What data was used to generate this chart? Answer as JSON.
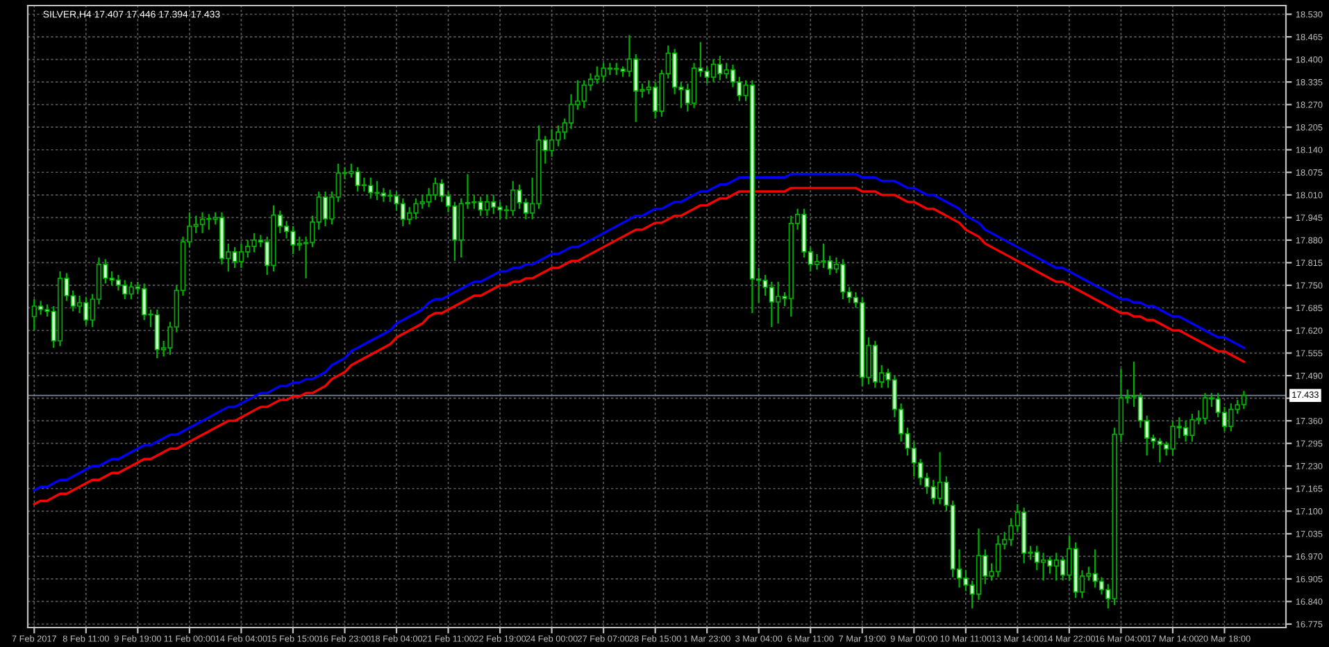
{
  "chart_data": {
    "type": "candlestick",
    "title": "SILVER,H4 17.407 17.446 17.394 17.433",
    "categories": [
      "7 Feb 2017",
      null,
      null,
      null,
      null,
      null,
      null,
      null,
      "8 Feb 11:00",
      null,
      null,
      null,
      null,
      null,
      null,
      null,
      "9 Feb 19:00",
      null,
      null,
      null,
      null,
      null,
      null,
      null,
      "11 Feb 00:00",
      null,
      null,
      null,
      null,
      null,
      null,
      null,
      "14 Feb 04:00",
      null,
      null,
      null,
      null,
      null,
      null,
      null,
      "15 Feb 15:00",
      null,
      null,
      null,
      null,
      null,
      null,
      null,
      "16 Feb 23:00",
      null,
      null,
      null,
      null,
      null,
      null,
      null,
      "18 Feb 04:00",
      null,
      null,
      null,
      null,
      null,
      null,
      null,
      "21 Feb 11:00",
      null,
      null,
      null,
      null,
      null,
      null,
      null,
      "22 Feb 19:00",
      null,
      null,
      null,
      null,
      null,
      null,
      null,
      "24 Feb 00:00",
      null,
      null,
      null,
      null,
      null,
      null,
      null,
      "27 Feb 07:00",
      null,
      null,
      null,
      null,
      null,
      null,
      null,
      "28 Feb 15:00",
      null,
      null,
      null,
      null,
      null,
      null,
      null,
      "1 Mar 23:00",
      null,
      null,
      null,
      null,
      null,
      null,
      null,
      "3 Mar 04:00",
      null,
      null,
      null,
      null,
      null,
      null,
      null,
      "6 Mar 11:00",
      null,
      null,
      null,
      null,
      null,
      null,
      null,
      "7 Mar 19:00",
      null,
      null,
      null,
      null,
      null,
      null,
      null,
      "9 Mar 00:00",
      null,
      null,
      null,
      null,
      null,
      null,
      null,
      "10 Mar 11:00",
      null,
      null,
      null,
      null,
      null,
      null,
      null,
      "13 Mar 14:00",
      null,
      null,
      null,
      null,
      null,
      null,
      null,
      "14 Mar 22:00",
      null,
      null,
      null,
      null,
      null,
      null,
      null,
      "16 Mar 04:00",
      null,
      null,
      null,
      null,
      null,
      null,
      null,
      "17 Mar 14:00",
      null,
      null,
      null,
      null,
      null,
      null,
      null,
      "20 Mar 18:00",
      null,
      null,
      null
    ],
    "ohlc": [
      [
        17.66,
        17.71,
        17.62,
        17.69
      ],
      [
        17.69,
        17.705,
        17.665,
        17.68
      ],
      [
        17.68,
        17.695,
        17.66,
        17.675
      ],
      [
        17.675,
        17.69,
        17.57,
        17.59
      ],
      [
        17.59,
        17.79,
        17.575,
        17.77
      ],
      [
        17.77,
        17.785,
        17.705,
        17.72
      ],
      [
        17.72,
        17.735,
        17.675,
        17.69
      ],
      [
        17.69,
        17.72,
        17.67,
        17.7
      ],
      [
        17.7,
        17.715,
        17.635,
        17.65
      ],
      [
        17.65,
        17.725,
        17.63,
        17.71
      ],
      [
        17.71,
        17.83,
        17.695,
        17.81
      ],
      [
        17.81,
        17.825,
        17.755,
        17.77
      ],
      [
        17.77,
        17.79,
        17.75,
        17.765
      ],
      [
        17.765,
        17.78,
        17.735,
        17.75
      ],
      [
        17.75,
        17.765,
        17.71,
        17.725
      ],
      [
        17.725,
        17.76,
        17.71,
        17.745
      ],
      [
        17.745,
        17.76,
        17.725,
        17.74
      ],
      [
        17.74,
        17.755,
        17.65,
        17.665
      ],
      [
        17.665,
        17.68,
        17.63,
        17.665
      ],
      [
        17.665,
        17.68,
        17.54,
        17.565
      ],
      [
        17.565,
        17.59,
        17.545,
        17.57
      ],
      [
        17.57,
        17.645,
        17.55,
        17.63
      ],
      [
        17.63,
        17.75,
        17.615,
        17.735
      ],
      [
        17.735,
        17.89,
        17.72,
        17.875
      ],
      [
        17.875,
        17.96,
        17.86,
        17.92
      ],
      [
        17.92,
        17.95,
        17.9,
        17.925
      ],
      [
        17.925,
        17.96,
        17.9,
        17.94
      ],
      [
        17.94,
        17.955,
        17.91,
        17.94
      ],
      [
        17.94,
        17.96,
        17.925,
        17.945
      ],
      [
        17.945,
        17.96,
        17.81,
        17.827
      ],
      [
        17.827,
        17.87,
        17.79,
        17.846
      ],
      [
        17.846,
        17.86,
        17.8,
        17.818
      ],
      [
        17.818,
        17.87,
        17.8,
        17.846
      ],
      [
        17.846,
        17.88,
        17.83,
        17.862
      ],
      [
        17.862,
        17.9,
        17.845,
        17.88
      ],
      [
        17.88,
        17.895,
        17.86,
        17.875
      ],
      [
        17.875,
        17.89,
        17.78,
        17.807
      ],
      [
        17.807,
        17.98,
        17.79,
        17.952
      ],
      [
        17.952,
        17.965,
        17.9,
        17.92
      ],
      [
        17.92,
        17.935,
        17.885,
        17.905
      ],
      [
        17.905,
        17.92,
        17.84,
        17.866
      ],
      [
        17.866,
        17.89,
        17.85,
        17.87
      ],
      [
        17.87,
        17.89,
        17.77,
        17.873
      ],
      [
        17.873,
        17.95,
        17.86,
        17.932
      ],
      [
        17.932,
        18.02,
        17.91,
        18.004
      ],
      [
        18.004,
        18.02,
        17.92,
        17.941
      ],
      [
        17.941,
        18.02,
        17.925,
        18.004
      ],
      [
        18.004,
        18.1,
        17.99,
        18.073
      ],
      [
        18.073,
        18.09,
        18.055,
        18.072
      ],
      [
        18.072,
        18.1,
        18.06,
        18.077
      ],
      [
        18.077,
        18.09,
        18.02,
        18.037
      ],
      [
        18.037,
        18.06,
        18.02,
        18.037
      ],
      [
        18.037,
        18.06,
        18.0,
        18.017
      ],
      [
        18.017,
        18.05,
        17.995,
        18.015
      ],
      [
        18.015,
        18.03,
        17.99,
        18.007
      ],
      [
        18.007,
        18.025,
        17.99,
        18.007
      ],
      [
        18.007,
        18.02,
        17.965,
        17.985
      ],
      [
        17.985,
        18.0,
        17.92,
        17.94
      ],
      [
        17.94,
        17.975,
        17.925,
        17.958
      ],
      [
        17.958,
        18.0,
        17.94,
        17.985
      ],
      [
        17.985,
        18.01,
        17.97,
        17.99
      ],
      [
        17.99,
        18.03,
        17.975,
        18.01
      ],
      [
        18.01,
        18.06,
        17.995,
        18.043
      ],
      [
        18.043,
        18.055,
        17.99,
        18.007
      ],
      [
        18.007,
        18.02,
        17.96,
        17.978
      ],
      [
        17.978,
        17.99,
        17.82,
        17.88
      ],
      [
        17.88,
        18.0,
        17.83,
        17.985
      ],
      [
        17.985,
        18.07,
        17.97,
        17.988
      ],
      [
        17.988,
        18.01,
        17.97,
        17.99
      ],
      [
        17.99,
        18.005,
        17.95,
        17.967
      ],
      [
        17.967,
        18.01,
        17.95,
        17.99
      ],
      [
        17.99,
        18.01,
        17.955,
        17.975
      ],
      [
        17.975,
        17.99,
        17.94,
        17.967
      ],
      [
        17.967,
        17.98,
        17.94,
        17.965
      ],
      [
        17.965,
        18.05,
        17.95,
        18.024
      ],
      [
        18.024,
        18.04,
        17.97,
        17.988
      ],
      [
        17.988,
        18.0,
        17.94,
        17.958
      ],
      [
        17.958,
        18.06,
        17.94,
        17.985
      ],
      [
        17.985,
        18.21,
        17.97,
        18.168
      ],
      [
        18.168,
        18.18,
        18.1,
        18.138
      ],
      [
        18.138,
        18.2,
        18.12,
        18.168
      ],
      [
        18.168,
        18.21,
        18.15,
        18.191
      ],
      [
        18.191,
        18.23,
        18.17,
        18.217
      ],
      [
        18.217,
        18.3,
        18.2,
        18.27
      ],
      [
        18.27,
        18.34,
        18.255,
        18.28
      ],
      [
        18.28,
        18.34,
        18.26,
        18.326
      ],
      [
        18.326,
        18.36,
        18.31,
        18.343
      ],
      [
        18.343,
        18.38,
        18.33,
        18.352
      ],
      [
        18.352,
        18.39,
        18.335,
        18.375
      ],
      [
        18.375,
        18.39,
        18.355,
        18.372
      ],
      [
        18.372,
        18.39,
        18.355,
        18.372
      ],
      [
        18.372,
        18.38,
        18.35,
        18.366
      ],
      [
        18.366,
        18.47,
        18.35,
        18.401
      ],
      [
        18.401,
        18.415,
        18.22,
        18.309
      ],
      [
        18.309,
        18.33,
        18.29,
        18.313
      ],
      [
        18.313,
        18.34,
        18.3,
        18.32
      ],
      [
        18.32,
        18.335,
        18.23,
        18.251
      ],
      [
        18.251,
        18.37,
        18.235,
        18.359
      ],
      [
        18.359,
        18.44,
        18.345,
        18.418
      ],
      [
        18.418,
        18.43,
        18.3,
        18.32
      ],
      [
        18.32,
        18.335,
        18.26,
        18.313
      ],
      [
        18.313,
        18.33,
        18.25,
        18.274
      ],
      [
        18.274,
        18.39,
        18.26,
        18.375
      ],
      [
        18.375,
        18.45,
        18.35,
        18.366
      ],
      [
        18.366,
        18.38,
        18.33,
        18.349
      ],
      [
        18.349,
        18.4,
        18.335,
        18.386
      ],
      [
        18.386,
        18.41,
        18.34,
        18.359
      ],
      [
        18.359,
        18.39,
        18.345,
        18.37
      ],
      [
        18.37,
        18.385,
        18.32,
        18.335
      ],
      [
        18.335,
        18.35,
        18.28,
        18.296
      ],
      [
        18.296,
        18.34,
        18.28,
        18.326
      ],
      [
        18.326,
        18.34,
        17.67,
        17.768
      ],
      [
        17.768,
        17.8,
        17.7,
        17.764
      ],
      [
        17.764,
        17.78,
        17.72,
        17.744
      ],
      [
        17.744,
        17.76,
        17.63,
        17.702
      ],
      [
        17.702,
        17.76,
        17.64,
        17.718
      ],
      [
        17.718,
        17.73,
        17.69,
        17.712
      ],
      [
        17.712,
        17.95,
        17.66,
        17.928
      ],
      [
        17.928,
        17.97,
        17.91,
        17.954
      ],
      [
        17.954,
        17.97,
        17.83,
        17.846
      ],
      [
        17.846,
        17.86,
        17.79,
        17.81
      ],
      [
        17.81,
        17.84,
        17.795,
        17.818
      ],
      [
        17.818,
        17.87,
        17.8,
        17.82
      ],
      [
        17.82,
        17.835,
        17.78,
        17.797
      ],
      [
        17.797,
        17.83,
        17.785,
        17.81
      ],
      [
        17.81,
        17.825,
        17.71,
        17.731
      ],
      [
        17.731,
        17.745,
        17.7,
        17.715
      ],
      [
        17.715,
        17.73,
        17.685,
        17.7
      ],
      [
        17.7,
        17.715,
        17.46,
        17.485
      ],
      [
        17.485,
        17.6,
        17.465,
        17.577
      ],
      [
        17.577,
        17.59,
        17.455,
        17.472
      ],
      [
        17.472,
        17.52,
        17.455,
        17.498
      ],
      [
        17.498,
        17.51,
        17.455,
        17.478
      ],
      [
        17.478,
        17.49,
        17.37,
        17.393
      ],
      [
        17.393,
        17.41,
        17.3,
        17.323
      ],
      [
        17.323,
        17.34,
        17.26,
        17.281
      ],
      [
        17.281,
        17.3,
        17.2,
        17.239
      ],
      [
        17.239,
        17.25,
        17.175,
        17.196
      ],
      [
        17.196,
        17.21,
        17.15,
        17.17
      ],
      [
        17.17,
        17.19,
        17.12,
        17.137
      ],
      [
        17.137,
        17.27,
        17.12,
        17.183
      ],
      [
        17.183,
        17.2,
        17.1,
        17.117
      ],
      [
        17.117,
        17.13,
        16.91,
        16.933
      ],
      [
        16.933,
        16.99,
        16.88,
        16.907
      ],
      [
        16.907,
        16.93,
        16.87,
        16.887
      ],
      [
        16.887,
        16.9,
        16.82,
        16.861
      ],
      [
        16.861,
        17.05,
        16.845,
        16.972
      ],
      [
        16.972,
        16.99,
        16.89,
        16.913
      ],
      [
        16.913,
        16.95,
        16.9,
        16.926
      ],
      [
        16.926,
        17.03,
        16.91,
        17.005
      ],
      [
        17.005,
        17.04,
        16.99,
        17.018
      ],
      [
        17.018,
        17.08,
        17.0,
        17.058
      ],
      [
        17.058,
        17.12,
        17.04,
        17.097
      ],
      [
        17.097,
        17.11,
        16.95,
        16.979
      ],
      [
        16.979,
        17.0,
        16.96,
        16.982
      ],
      [
        16.982,
        17.0,
        16.93,
        16.953
      ],
      [
        16.953,
        16.98,
        16.9,
        16.959
      ],
      [
        16.959,
        16.97,
        16.92,
        16.942
      ],
      [
        16.942,
        16.98,
        16.9,
        16.959
      ],
      [
        16.959,
        16.97,
        16.9,
        16.916
      ],
      [
        16.916,
        17.03,
        16.9,
        16.992
      ],
      [
        16.992,
        17.01,
        16.85,
        16.867
      ],
      [
        16.867,
        16.93,
        16.85,
        16.913
      ],
      [
        16.913,
        16.94,
        16.9,
        16.92
      ],
      [
        16.92,
        16.99,
        16.88,
        16.898
      ],
      [
        16.898,
        16.91,
        16.86,
        16.874
      ],
      [
        16.874,
        16.89,
        16.82,
        16.848
      ],
      [
        16.848,
        17.34,
        16.83,
        17.321
      ],
      [
        17.321,
        17.51,
        17.3,
        17.426
      ],
      [
        17.426,
        17.45,
        17.41,
        17.429
      ],
      [
        17.429,
        17.53,
        17.4,
        17.429
      ],
      [
        17.429,
        17.44,
        17.34,
        17.36
      ],
      [
        17.36,
        17.375,
        17.26,
        17.31
      ],
      [
        17.31,
        17.32,
        17.28,
        17.301
      ],
      [
        17.301,
        17.31,
        17.24,
        17.292
      ],
      [
        17.292,
        17.3,
        17.26,
        17.279
      ],
      [
        17.279,
        17.36,
        17.26,
        17.344
      ],
      [
        17.344,
        17.37,
        17.31,
        17.34
      ],
      [
        17.34,
        17.36,
        17.3,
        17.318
      ],
      [
        17.318,
        17.38,
        17.3,
        17.363
      ],
      [
        17.363,
        17.39,
        17.35,
        17.367
      ],
      [
        17.367,
        17.44,
        17.35,
        17.426
      ],
      [
        17.426,
        17.44,
        17.4,
        17.423
      ],
      [
        17.423,
        17.44,
        17.37,
        17.384
      ],
      [
        17.384,
        17.4,
        17.33,
        17.344
      ],
      [
        17.344,
        17.41,
        17.33,
        17.393
      ],
      [
        17.393,
        17.42,
        17.38,
        17.406
      ],
      [
        17.407,
        17.446,
        17.394,
        17.433
      ]
    ],
    "series": [
      {
        "type": "line",
        "color": "#0000ff",
        "values": [
          17.16,
          17.17,
          17.17,
          17.18,
          17.19,
          17.19,
          17.2,
          17.21,
          17.22,
          17.23,
          17.23,
          17.24,
          17.25,
          17.25,
          17.26,
          17.27,
          17.28,
          17.29,
          17.29,
          17.3,
          17.31,
          17.32,
          17.32,
          17.33,
          17.34,
          17.35,
          17.36,
          17.37,
          17.38,
          17.39,
          17.4,
          17.4,
          17.41,
          17.42,
          17.43,
          17.44,
          17.44,
          17.45,
          17.46,
          17.46,
          17.47,
          17.47,
          17.48,
          17.48,
          17.49,
          17.5,
          17.52,
          17.53,
          17.54,
          17.56,
          17.57,
          17.58,
          17.59,
          17.6,
          17.61,
          17.62,
          17.64,
          17.65,
          17.66,
          17.67,
          17.68,
          17.7,
          17.71,
          17.71,
          17.72,
          17.73,
          17.74,
          17.75,
          17.76,
          17.76,
          17.77,
          17.78,
          17.79,
          17.79,
          17.8,
          17.8,
          17.81,
          17.81,
          17.82,
          17.83,
          17.84,
          17.84,
          17.85,
          17.86,
          17.86,
          17.87,
          17.88,
          17.89,
          17.9,
          17.91,
          17.92,
          17.93,
          17.94,
          17.95,
          17.95,
          17.96,
          17.97,
          17.97,
          17.98,
          17.99,
          17.99,
          18.0,
          18.01,
          18.02,
          18.02,
          18.03,
          18.04,
          18.04,
          18.05,
          18.06,
          18.06,
          18.06,
          18.06,
          18.06,
          18.06,
          18.06,
          18.06,
          18.07,
          18.07,
          18.07,
          18.07,
          18.07,
          18.07,
          18.07,
          18.07,
          18.07,
          18.07,
          18.07,
          18.06,
          18.06,
          18.06,
          18.05,
          18.05,
          18.05,
          18.04,
          18.03,
          18.03,
          18.02,
          18.01,
          18.01,
          18.0,
          17.99,
          17.98,
          17.97,
          17.95,
          17.94,
          17.93,
          17.91,
          17.9,
          17.89,
          17.88,
          17.87,
          17.86,
          17.85,
          17.84,
          17.83,
          17.82,
          17.81,
          17.8,
          17.8,
          17.79,
          17.78,
          17.77,
          17.76,
          17.75,
          17.74,
          17.73,
          17.72,
          17.71,
          17.71,
          17.7,
          17.7,
          17.69,
          17.69,
          17.68,
          17.67,
          17.66,
          17.66,
          17.65,
          17.64,
          17.63,
          17.62,
          17.61,
          17.6,
          17.6,
          17.59,
          17.58,
          17.57
        ]
      },
      {
        "type": "line",
        "color": "#ff0000",
        "values": [
          17.12,
          17.13,
          17.13,
          17.14,
          17.15,
          17.15,
          17.16,
          17.17,
          17.18,
          17.19,
          17.19,
          17.2,
          17.21,
          17.21,
          17.22,
          17.23,
          17.24,
          17.25,
          17.25,
          17.26,
          17.27,
          17.28,
          17.28,
          17.29,
          17.3,
          17.31,
          17.32,
          17.33,
          17.34,
          17.35,
          17.36,
          17.36,
          17.37,
          17.38,
          17.39,
          17.4,
          17.4,
          17.41,
          17.42,
          17.42,
          17.43,
          17.43,
          17.44,
          17.44,
          17.45,
          17.46,
          17.48,
          17.49,
          17.5,
          17.52,
          17.53,
          17.54,
          17.55,
          17.56,
          17.57,
          17.58,
          17.6,
          17.61,
          17.62,
          17.63,
          17.64,
          17.66,
          17.67,
          17.67,
          17.68,
          17.69,
          17.7,
          17.71,
          17.72,
          17.72,
          17.73,
          17.74,
          17.75,
          17.75,
          17.76,
          17.76,
          17.77,
          17.77,
          17.78,
          17.79,
          17.8,
          17.8,
          17.81,
          17.82,
          17.82,
          17.83,
          17.84,
          17.85,
          17.86,
          17.87,
          17.88,
          17.89,
          17.9,
          17.91,
          17.91,
          17.92,
          17.93,
          17.93,
          17.94,
          17.95,
          17.95,
          17.96,
          17.97,
          17.98,
          17.98,
          17.99,
          18.0,
          18.0,
          18.01,
          18.02,
          18.02,
          18.02,
          18.02,
          18.02,
          18.02,
          18.02,
          18.02,
          18.03,
          18.03,
          18.03,
          18.03,
          18.03,
          18.03,
          18.03,
          18.03,
          18.03,
          18.03,
          18.03,
          18.02,
          18.02,
          18.02,
          18.01,
          18.01,
          18.01,
          18.0,
          17.99,
          17.99,
          17.98,
          17.97,
          17.97,
          17.96,
          17.95,
          17.94,
          17.93,
          17.91,
          17.9,
          17.89,
          17.87,
          17.86,
          17.85,
          17.84,
          17.83,
          17.82,
          17.81,
          17.8,
          17.79,
          17.78,
          17.77,
          17.76,
          17.76,
          17.75,
          17.74,
          17.73,
          17.72,
          17.71,
          17.7,
          17.69,
          17.68,
          17.67,
          17.67,
          17.66,
          17.66,
          17.65,
          17.65,
          17.64,
          17.63,
          17.62,
          17.62,
          17.61,
          17.6,
          17.59,
          17.58,
          17.57,
          17.56,
          17.56,
          17.55,
          17.54,
          17.53
        ]
      }
    ],
    "ylim": [
      16.765,
      18.555
    ],
    "yticks": [
      16.775,
      {
        "value": 16.84,
        "label": "16.840"
      },
      16.905,
      {
        "value": 16.97,
        "label": "16.970"
      },
      17.035,
      {
        "value": 17.1,
        "label": "17.100"
      },
      17.165,
      {
        "value": 17.23,
        "label": "17.230"
      },
      17.295,
      {
        "value": 17.36,
        "label": "17.360"
      },
      {
        "value": 17.425,
        "label": null
      },
      {
        "value": 17.49,
        "label": "17.490"
      },
      17.555,
      {
        "value": 17.62,
        "label": "17.620"
      },
      17.685,
      {
        "value": 17.75,
        "label": "17.750"
      },
      17.815,
      {
        "value": 17.88,
        "label": "17.880"
      },
      17.945,
      {
        "value": 18.01,
        "label": "18.010"
      },
      18.075,
      {
        "value": 18.14,
        "label": "18.140"
      },
      18.205,
      {
        "value": 18.27,
        "label": "18.270"
      },
      18.335,
      {
        "value": 18.4,
        "label": "18.400"
      },
      18.465,
      {
        "value": 18.53,
        "label": "18.530"
      }
    ],
    "ref_lines": [
      {
        "axis": "y",
        "value": 17.433,
        "label": "17.433",
        "color": "#778899"
      }
    ],
    "grid": true
  }
}
